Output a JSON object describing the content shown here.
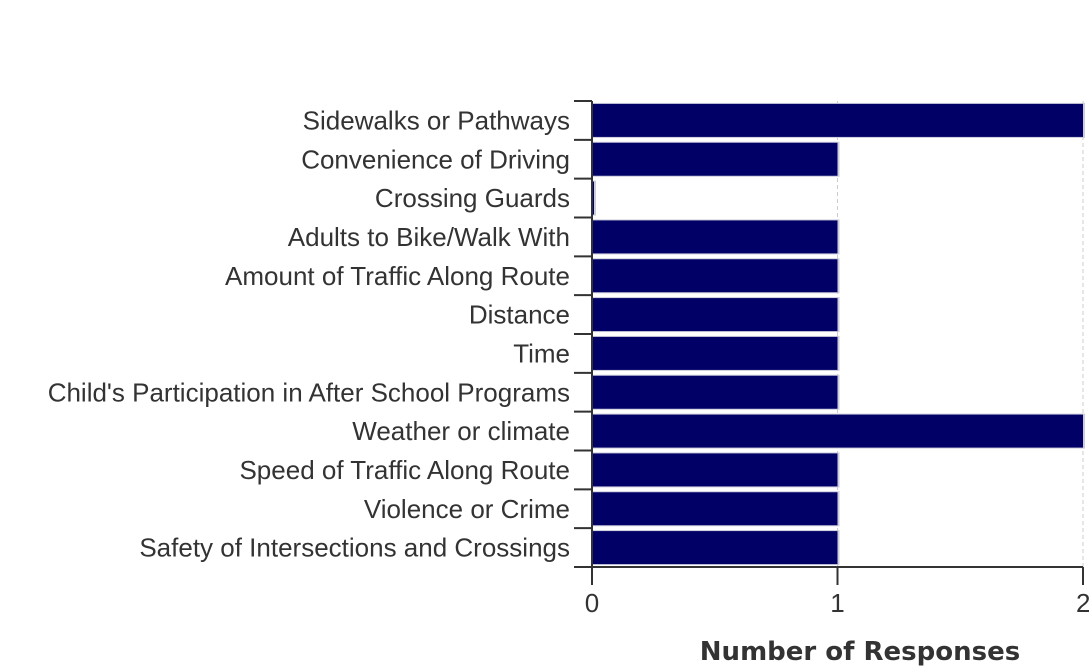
{
  "chart_data": {
    "type": "bar",
    "orientation": "horizontal",
    "categories": [
      "Sidewalks or Pathways",
      "Convenience of Driving",
      "Crossing Guards",
      "Adults to Bike/Walk With",
      "Amount of Traffic Along Route",
      "Distance",
      "Time",
      "Child's Participation in After School Programs",
      "Weather or climate",
      "Speed of Traffic Along Route",
      "Violence or Crime",
      "Safety of Intersections and Crossings"
    ],
    "values": [
      2,
      1,
      0,
      1,
      1,
      1,
      1,
      1,
      2,
      1,
      1,
      1
    ],
    "xlabel": "Number of Responses",
    "ylabel": "",
    "xlim": [
      0,
      2
    ],
    "xticks": [
      "0",
      "1",
      "2"
    ],
    "grid": true,
    "colors": {
      "bar": "#000066",
      "bar_highlight": "#ccccdd",
      "axis": "#333333",
      "grid": "#cccccc",
      "text": "#333333"
    }
  }
}
